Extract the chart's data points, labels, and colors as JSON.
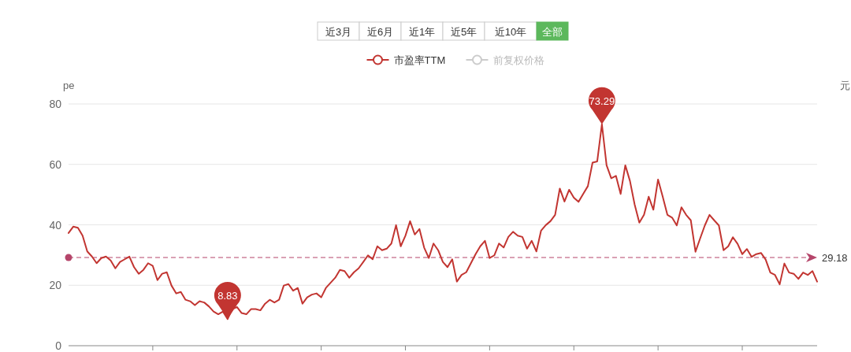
{
  "chart_data": {
    "type": "line",
    "ylabel": "pe",
    "y2label": "元",
    "categories": [
      null,
      null,
      null,
      null,
      null,
      null,
      null,
      null,
      null,
      null,
      null,
      null,
      null,
      null,
      null,
      null,
      null,
      null,
      null,
      null,
      null,
      null,
      null,
      null,
      null,
      null,
      null,
      null,
      null,
      null,
      null,
      null,
      null,
      null,
      null,
      null,
      null,
      null,
      null,
      null,
      null,
      null,
      null,
      null,
      null,
      null,
      null,
      null,
      null,
      null,
      null,
      null,
      null,
      null,
      null,
      null,
      null,
      null,
      null,
      null,
      null,
      null,
      null,
      null,
      null,
      null,
      null,
      null,
      null,
      null,
      null,
      null,
      null,
      null,
      null,
      null,
      null,
      null,
      null,
      null,
      null,
      null,
      null,
      null,
      null,
      null,
      null,
      null,
      null,
      null,
      null,
      null,
      null,
      null,
      null,
      null,
      null,
      null,
      null,
      null,
      null,
      null,
      null,
      null,
      null,
      null,
      null,
      null,
      null,
      null,
      null,
      null,
      null,
      null,
      null,
      null,
      null,
      null,
      null,
      null,
      null,
      null,
      null,
      null,
      null,
      null,
      null,
      null,
      null,
      null,
      null,
      null,
      null,
      null,
      null,
      null,
      null,
      null,
      null,
      null,
      null,
      null,
      null,
      null,
      null,
      null,
      null,
      null,
      null,
      null,
      null,
      null,
      null,
      null,
      null,
      null,
      null,
      null,
      null,
      null,
      null
    ],
    "series": [
      {
        "name": "市盈率TTM",
        "color": "#c23531",
        "values": [
          37.3,
          39.4,
          39,
          36.4,
          31.2,
          29.5,
          27.3,
          29,
          29.5,
          28.2,
          25.6,
          27.7,
          28.6,
          29.5,
          26,
          23.8,
          25.1,
          27.3,
          26.4,
          21.7,
          23.8,
          24.3,
          19.9,
          17.3,
          17.8,
          15.2,
          14.7,
          13.4,
          14.7,
          14.3,
          13,
          11.3,
          10.4,
          11.3,
          8.83,
          12.1,
          12.8,
          10.8,
          10.4,
          12.1,
          12.1,
          11.7,
          13.9,
          15.2,
          14.3,
          15.2,
          19.9,
          20.4,
          18.2,
          19.1,
          13.9,
          16,
          16.9,
          17.3,
          16,
          19.1,
          20.8,
          22.5,
          25.1,
          24.7,
          22.5,
          24.3,
          25.6,
          27.7,
          29.9,
          28.6,
          32.9,
          31.6,
          32.1,
          33.8,
          39.9,
          32.9,
          36.4,
          41.2,
          36.8,
          38.6,
          32.5,
          29,
          33.8,
          31.6,
          27.7,
          26,
          28.6,
          21.2,
          23.4,
          24.3,
          27.3,
          30.3,
          32.9,
          34.7,
          29,
          29.9,
          33.8,
          32.5,
          36,
          37.7,
          36.4,
          36,
          32.1,
          34.7,
          31.2,
          38.1,
          39.9,
          41.2,
          43.3,
          52,
          47.7,
          51.6,
          49,
          47.6,
          50.2,
          52.8,
          60.6,
          61,
          73.29,
          59.7,
          55.4,
          56.2,
          50.2,
          59.7,
          54.5,
          46.7,
          40.7,
          43.3,
          49.3,
          45,
          55,
          49.3,
          43.3,
          42.4,
          39.8,
          45.8,
          43.3,
          41.5,
          31.1,
          35.5,
          39.8,
          43.3,
          41.5,
          39.8,
          31.6,
          32.9,
          35.9,
          33.7,
          30.3,
          32,
          29.4,
          30.3,
          30.7,
          28.5,
          24.2,
          23.4,
          20.3,
          27.2,
          24.2,
          23.8,
          22.1,
          24.2,
          23.4,
          24.7,
          21.2
        ]
      },
      {
        "name": "前复权价格",
        "color": "#cccccc",
        "values": [
          null,
          null,
          null,
          null,
          null,
          null,
          null,
          null,
          null,
          null,
          null,
          null,
          null,
          null,
          null,
          null,
          null,
          null,
          null,
          null,
          null,
          null,
          null,
          null,
          null,
          null,
          null,
          null,
          null,
          null,
          null,
          null,
          null,
          null,
          null,
          null,
          null,
          null,
          null,
          null,
          null,
          null,
          null,
          null,
          null,
          null,
          null,
          null,
          null,
          null,
          null,
          null,
          null,
          null,
          null,
          null,
          null,
          null,
          null,
          null,
          null,
          null,
          null,
          null,
          null,
          null,
          null,
          null,
          null,
          null,
          null,
          null,
          null,
          null,
          null,
          null,
          null,
          null,
          null,
          null,
          null,
          null,
          null,
          null,
          null,
          null,
          null,
          null,
          null,
          null,
          null,
          null,
          null,
          null,
          null,
          null,
          null,
          null,
          null,
          null,
          null,
          null,
          null,
          null,
          null,
          null,
          null,
          null,
          null,
          null,
          null,
          null,
          null,
          null,
          null,
          null,
          null,
          null,
          null,
          null,
          null,
          null,
          null,
          null,
          null,
          null,
          null,
          null,
          null,
          null,
          null,
          null,
          null,
          null,
          null,
          null,
          null,
          null,
          null,
          null,
          null,
          null,
          null,
          null,
          null,
          null,
          null,
          null,
          null,
          null,
          null,
          null,
          null,
          null,
          null,
          null,
          null,
          null,
          null,
          null,
          null
        ]
      }
    ],
    "ylim": [
      0,
      80
    ],
    "yticks": [
      0,
      20,
      40,
      60,
      80
    ],
    "grid": "y",
    "legend": "top",
    "tick_labels": "y",
    "ref_lines": [
      {
        "axis": "y",
        "value": 29.18,
        "label": "29.18",
        "color": "#b5456a",
        "line_style": "dashed"
      }
    ],
    "annotations": [
      "近3月",
      "近6月",
      "近1年",
      "近5年",
      "近10年",
      "全部",
      {
        "text": "8.83",
        "y": 8.83
      },
      {
        "text": "73.29",
        "y": 73.29
      }
    ]
  }
}
